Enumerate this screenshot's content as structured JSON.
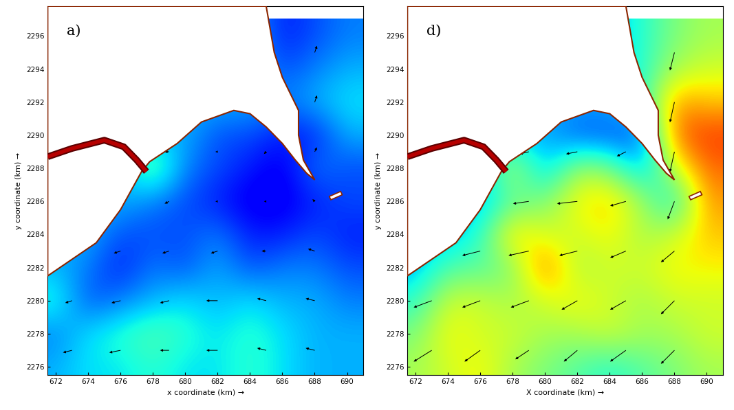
{
  "chart_data": [
    {
      "type": "heatmap",
      "title": "a)",
      "xlabel": "x coordinate (km) →",
      "ylabel": "y coordinate (km) →",
      "xlim": [
        671.5,
        691
      ],
      "ylim": [
        2275.5,
        2297.8
      ],
      "xticks": [
        672,
        674,
        676,
        678,
        680,
        682,
        684,
        686,
        688,
        690
      ],
      "yticks": [
        2276,
        2278,
        2280,
        2282,
        2284,
        2286,
        2288,
        2290,
        2292,
        2294,
        2296
      ],
      "clim": [
        0,
        1
      ],
      "cell_x": [
        672,
        674,
        676,
        678,
        680,
        682,
        684,
        686,
        688,
        690
      ],
      "cell_y": [
        2276,
        2278,
        2280,
        2282,
        2284,
        2286,
        2288,
        2290,
        2292,
        2294,
        2296
      ],
      "cells": [
        [
          0.3,
          0.35,
          0.35,
          0.4,
          0.35,
          0.35,
          0.4,
          0.35,
          0.3,
          0.3
        ],
        [
          0.25,
          0.35,
          0.4,
          0.45,
          0.4,
          0.35,
          0.4,
          0.35,
          0.3,
          0.3
        ],
        [
          0.4,
          0.2,
          0.25,
          0.3,
          0.35,
          0.3,
          0.35,
          0.3,
          0.3,
          0.25
        ],
        [
          0.3,
          0.25,
          0.15,
          0.25,
          0.2,
          0.3,
          0.2,
          0.25,
          0.25,
          0.2
        ],
        [
          0.3,
          0.3,
          0.2,
          0.2,
          0.2,
          0.25,
          0.15,
          0.15,
          0.2,
          0.15
        ],
        [
          0.3,
          0.3,
          0.3,
          0.25,
          0.2,
          0.15,
          0.1,
          0.1,
          0.15,
          0.2
        ],
        [
          0.3,
          0.3,
          0.3,
          0.5,
          0.25,
          0.2,
          0.15,
          0.1,
          0.25,
          0.2
        ],
        [
          0.3,
          0.3,
          0.3,
          0.3,
          0.3,
          0.2,
          0.2,
          0.15,
          0.15,
          0.3
        ],
        [
          0.3,
          0.3,
          0.3,
          0.3,
          0.3,
          0.3,
          0.3,
          0.25,
          0.3,
          0.35
        ],
        [
          0.3,
          0.3,
          0.3,
          0.3,
          0.3,
          0.3,
          0.3,
          0.2,
          0.25,
          0.3
        ],
        [
          0.3,
          0.3,
          0.3,
          0.3,
          0.3,
          0.3,
          0.3,
          0.15,
          0.2,
          0.25
        ]
      ],
      "arrows": {
        "x": [
          673,
          676,
          679,
          682,
          685,
          688
        ],
        "y": [
          2277,
          2280,
          2283,
          2286,
          2289,
          2292,
          2295
        ],
        "u": [
          [
            -0.4,
            -0.5,
            -0.4,
            -0.5,
            -0.4,
            -0.4
          ],
          [
            -0.3,
            -0.4,
            -0.4,
            -0.5,
            -0.4,
            -0.4
          ],
          [
            null,
            -0.3,
            -0.3,
            -0.3,
            -0.2,
            -0.3
          ],
          [
            null,
            null,
            -0.2,
            -0.1,
            -0.1,
            -0.1
          ],
          [
            null,
            null,
            -0.2,
            -0.1,
            -0.1,
            0.1
          ],
          [
            null,
            null,
            null,
            null,
            null,
            0.1
          ],
          [
            null,
            null,
            null,
            null,
            null,
            0.1
          ]
        ],
        "v": [
          [
            -0.1,
            -0.1,
            0.0,
            0.0,
            0.1,
            0.1
          ],
          [
            -0.1,
            -0.1,
            -0.1,
            0.0,
            0.1,
            0.1
          ],
          [
            null,
            -0.1,
            -0.1,
            -0.1,
            0.0,
            0.1
          ],
          [
            null,
            null,
            -0.1,
            0.0,
            0.0,
            0.1
          ],
          [
            null,
            null,
            0.0,
            0.0,
            -0.1,
            0.2
          ],
          [
            null,
            null,
            null,
            null,
            null,
            0.3
          ],
          [
            null,
            null,
            null,
            null,
            null,
            0.3
          ]
        ]
      },
      "land": [
        [
          671.5,
          2281.5
        ],
        [
          673,
          2282.5
        ],
        [
          674.5,
          2283.5
        ],
        [
          676,
          2285.5
        ],
        [
          677.3,
          2287.8
        ],
        [
          677.8,
          2288.4
        ],
        [
          679.5,
          2289.5
        ],
        [
          681,
          2290.8
        ],
        [
          683,
          2291.5
        ],
        [
          684,
          2291.3
        ],
        [
          685,
          2290.5
        ],
        [
          686,
          2289.5
        ],
        [
          686.8,
          2288.5
        ],
        [
          687.5,
          2287.7
        ],
        [
          688,
          2287.3
        ],
        [
          687.3,
          2288.5
        ],
        [
          687,
          2290
        ],
        [
          687,
          2291.5
        ],
        [
          686.5,
          2292.5
        ],
        [
          686,
          2293.5
        ],
        [
          685.5,
          2295
        ],
        [
          685,
          2297.8
        ],
        [
          671.5,
          2297.8
        ]
      ],
      "island": [
        [
          688.9,
          2286.3
        ],
        [
          689.6,
          2286.6
        ],
        [
          689.7,
          2286.4
        ],
        [
          689.0,
          2286.1
        ]
      ],
      "river": [
        [
          671.5,
          2288.7
        ],
        [
          673,
          2289.2
        ],
        [
          675,
          2289.7
        ],
        [
          676.2,
          2289.3
        ],
        [
          677,
          2288.5
        ],
        [
          677.6,
          2287.8
        ]
      ],
      "river_speed": 0.95
    },
    {
      "type": "heatmap",
      "title": "d)",
      "xlabel": "X coordinate (km) →",
      "ylabel": "y coordinate (km) →",
      "xlim": [
        671.5,
        691
      ],
      "ylim": [
        2275.5,
        2297.8
      ],
      "xticks": [
        672,
        674,
        676,
        678,
        680,
        682,
        684,
        686,
        688,
        690
      ],
      "yticks": [
        2276,
        2278,
        2280,
        2282,
        2284,
        2286,
        2288,
        2290,
        2292,
        2294,
        2296
      ],
      "clim": [
        0,
        1
      ],
      "cell_x": [
        672,
        674,
        676,
        678,
        680,
        682,
        684,
        686,
        688,
        690
      ],
      "cell_y": [
        2276,
        2278,
        2280,
        2282,
        2284,
        2286,
        2288,
        2290,
        2292,
        2294,
        2296
      ],
      "cells": [
        [
          0.55,
          0.6,
          0.65,
          0.55,
          0.5,
          0.45,
          0.4,
          0.45,
          0.5,
          0.55
        ],
        [
          0.5,
          0.65,
          0.6,
          0.6,
          0.55,
          0.55,
          0.6,
          0.55,
          0.55,
          0.6
        ],
        [
          0.4,
          0.6,
          0.6,
          0.55,
          0.6,
          0.65,
          0.6,
          0.55,
          0.6,
          0.6
        ],
        [
          0.3,
          0.45,
          0.45,
          0.5,
          0.8,
          0.55,
          0.6,
          0.6,
          0.65,
          0.65
        ],
        [
          0.3,
          0.3,
          0.4,
          0.7,
          0.6,
          0.6,
          0.65,
          0.55,
          0.6,
          0.7
        ],
        [
          0.3,
          0.3,
          0.3,
          0.45,
          0.5,
          0.65,
          0.7,
          0.55,
          0.35,
          0.75
        ],
        [
          0.3,
          0.3,
          0.3,
          0.6,
          0.3,
          0.55,
          0.5,
          0.3,
          0.6,
          0.8
        ],
        [
          0.3,
          0.3,
          0.3,
          0.3,
          0.3,
          0.2,
          0.2,
          0.2,
          0.8,
          0.85
        ],
        [
          0.3,
          0.3,
          0.3,
          0.3,
          0.3,
          0.3,
          0.3,
          0.4,
          0.75,
          0.7
        ],
        [
          0.3,
          0.3,
          0.3,
          0.3,
          0.3,
          0.3,
          0.3,
          0.4,
          0.55,
          0.6
        ],
        [
          0.3,
          0.3,
          0.3,
          0.3,
          0.3,
          0.3,
          0.3,
          0.4,
          0.5,
          0.55
        ]
      ],
      "arrows": {
        "x": [
          673,
          676,
          679,
          682,
          685,
          688
        ],
        "y": [
          2277,
          2280,
          2283,
          2286,
          2289,
          2292,
          2295
        ],
        "u": [
          [
            -0.8,
            -0.7,
            -0.6,
            -0.6,
            -0.7,
            -0.6
          ],
          [
            -0.8,
            -0.8,
            -0.8,
            -0.7,
            -0.7,
            -0.6
          ],
          [
            null,
            -0.8,
            -0.9,
            -0.8,
            -0.7,
            -0.6
          ],
          [
            null,
            null,
            -0.7,
            -0.9,
            -0.7,
            -0.3
          ],
          [
            null,
            null,
            -0.4,
            -0.5,
            -0.4,
            -0.2
          ],
          [
            null,
            null,
            null,
            null,
            null,
            -0.2
          ],
          [
            null,
            null,
            null,
            null,
            null,
            -0.2
          ]
        ],
        "v": [
          [
            -0.5,
            -0.5,
            -0.4,
            -0.5,
            -0.5,
            -0.6
          ],
          [
            -0.3,
            -0.3,
            -0.3,
            -0.4,
            -0.4,
            -0.6
          ],
          [
            null,
            -0.2,
            -0.2,
            -0.2,
            -0.3,
            -0.5
          ],
          [
            null,
            null,
            -0.1,
            -0.1,
            -0.2,
            -0.8
          ],
          [
            null,
            null,
            -0.1,
            -0.1,
            -0.2,
            -0.9
          ],
          [
            null,
            null,
            null,
            null,
            null,
            -0.9
          ],
          [
            null,
            null,
            null,
            null,
            null,
            -0.8
          ]
        ]
      },
      "land": [
        [
          671.5,
          2281.5
        ],
        [
          673,
          2282.5
        ],
        [
          674.5,
          2283.5
        ],
        [
          676,
          2285.5
        ],
        [
          677.3,
          2287.8
        ],
        [
          677.8,
          2288.4
        ],
        [
          679.5,
          2289.5
        ],
        [
          681,
          2290.8
        ],
        [
          683,
          2291.5
        ],
        [
          684,
          2291.3
        ],
        [
          685,
          2290.5
        ],
        [
          686,
          2289.5
        ],
        [
          686.8,
          2288.5
        ],
        [
          687.5,
          2287.7
        ],
        [
          688,
          2287.3
        ],
        [
          687.3,
          2288.5
        ],
        [
          687,
          2290
        ],
        [
          687,
          2291.5
        ],
        [
          686.5,
          2292.5
        ],
        [
          686,
          2293.5
        ],
        [
          685.5,
          2295
        ],
        [
          685,
          2297.8
        ],
        [
          671.5,
          2297.8
        ]
      ],
      "island": [
        [
          688.9,
          2286.3
        ],
        [
          689.6,
          2286.6
        ],
        [
          689.7,
          2286.4
        ],
        [
          689.0,
          2286.1
        ]
      ],
      "river": [
        [
          671.5,
          2288.7
        ],
        [
          673,
          2289.2
        ],
        [
          675,
          2289.7
        ],
        [
          676.2,
          2289.3
        ],
        [
          677,
          2288.5
        ],
        [
          677.6,
          2287.8
        ]
      ],
      "river_speed": 0.95
    }
  ]
}
